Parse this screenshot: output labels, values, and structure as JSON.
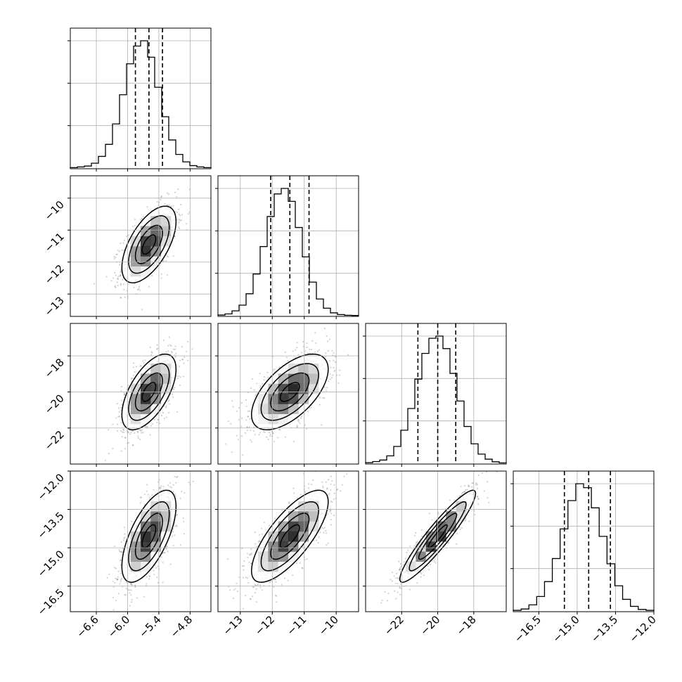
{
  "chart_data": {
    "type": "corner",
    "grid": true,
    "parameters": [
      {
        "range": [
          -7.1,
          -4.4
        ],
        "ticks": [
          -6.6,
          -6.0,
          -5.4,
          -4.8
        ],
        "tick_labels": [
          "−6.6",
          "−6.0",
          "−5.4",
          "−4.8"
        ],
        "quantiles": [
          -5.85,
          -5.59,
          -5.33
        ]
      },
      {
        "range": [
          -13.7,
          -9.3
        ],
        "ticks": [
          -13,
          -12,
          -11,
          -10
        ],
        "tick_labels": [
          "−13",
          "−12",
          "−11",
          "−10"
        ],
        "quantiles": [
          -12.05,
          -11.45,
          -10.85
        ]
      },
      {
        "range": [
          -24.0,
          -16.2
        ],
        "ticks": [
          -22,
          -20,
          -18
        ],
        "tick_labels": [
          "−22",
          "−20",
          "−18"
        ],
        "quantiles": [
          -21.1,
          -20.0,
          -19.0
        ]
      },
      {
        "range": [
          -17.5,
          -12.0
        ],
        "ticks": [
          -16.5,
          -15.0,
          -13.5,
          -12.0
        ],
        "tick_labels": [
          "−16.5",
          "−15.0",
          "−13.5",
          "−12.0"
        ],
        "quantiles": [
          -15.5,
          -14.55,
          -13.7
        ]
      }
    ],
    "histograms": [
      {
        "counts": [
          2,
          5,
          9,
          22,
          53,
          108,
          201,
          334,
          475,
          556,
          580,
          505,
          368,
          234,
          128,
          62,
          28,
          11,
          5,
          2
        ]
      },
      {
        "counts": [
          3,
          8,
          22,
          48,
          100,
          190,
          315,
          452,
          555,
          580,
          521,
          402,
          268,
          153,
          76,
          34,
          13,
          5,
          2,
          1
        ]
      },
      {
        "counts": [
          3,
          8,
          15,
          34,
          77,
          151,
          250,
          384,
          501,
          570,
          580,
          523,
          410,
          284,
          168,
          89,
          42,
          19,
          7,
          2
        ]
      },
      {
        "counts": [
          3,
          9,
          28,
          66,
          134,
          239,
          374,
          503,
          580,
          562,
          470,
          340,
          215,
          115,
          53,
          21,
          7,
          3
        ]
      }
    ],
    "correlations": [
      {
        "row": 1,
        "col": 0,
        "rho": 0.6
      },
      {
        "row": 2,
        "col": 0,
        "rho": 0.6
      },
      {
        "row": 2,
        "col": 1,
        "rho": 0.6
      },
      {
        "row": 3,
        "col": 0,
        "rho": 0.65
      },
      {
        "row": 3,
        "col": 1,
        "rho": 0.75
      },
      {
        "row": 3,
        "col": 2,
        "rho": 0.93
      }
    ]
  }
}
